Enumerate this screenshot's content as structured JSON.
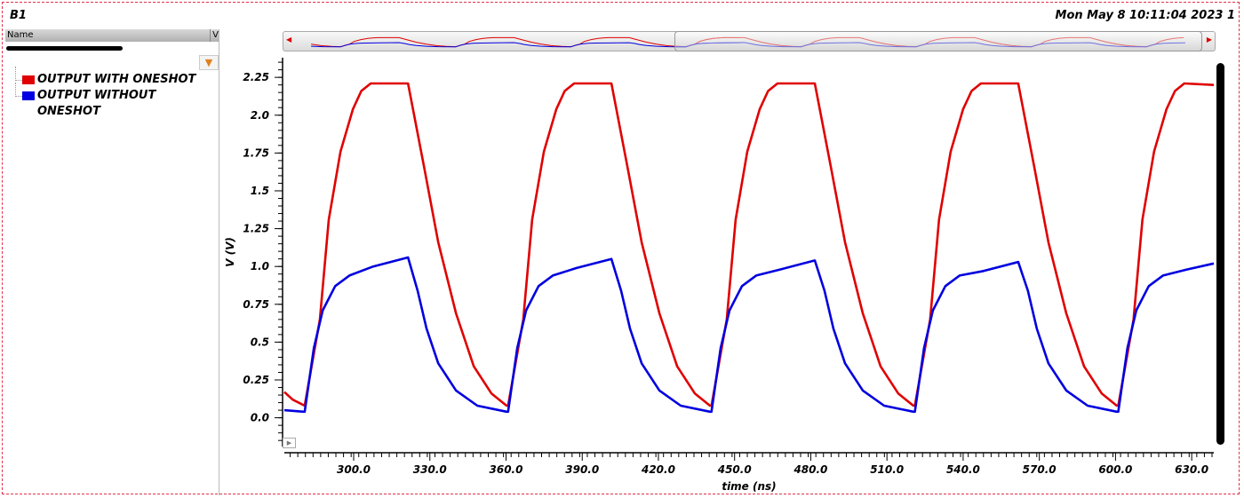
{
  "header": {
    "title": "B1",
    "date": "Mon May 8 10:11:04 2023  1"
  },
  "panel": {
    "name_col": "Name",
    "value_col": "V",
    "filter_icon": "filter-icon"
  },
  "chart_data": {
    "type": "line",
    "xlabel": "time (ns)",
    "ylabel": "V (V)",
    "xlim": [
      272.7,
      638.7
    ],
    "ylim": [
      -0.19,
      2.38
    ],
    "xticks": [
      300,
      330,
      360,
      390,
      420,
      450,
      480,
      510,
      540,
      570,
      600,
      630
    ],
    "xtick_labels": [
      "300.0",
      "330.0",
      "360.0",
      "390.0",
      "420.0",
      "450.0",
      "480.0",
      "510.0",
      "540.0",
      "570.0",
      "600.0",
      "630.0"
    ],
    "yticks": [
      0,
      0.25,
      0.5,
      0.75,
      1.0,
      1.25,
      1.5,
      1.75,
      2.0,
      2.25
    ],
    "ytick_labels": [
      "0.0",
      "0.25",
      "0.5",
      "0.75",
      "1.0",
      "1.25",
      "1.5",
      "1.75",
      "2.0",
      "2.25"
    ],
    "grid": false,
    "legend": "left-panel",
    "series": [
      {
        "name": "OUTPUT WITH ONESHOT",
        "color": "#e00000",
        "points": [
          [
            272.7,
            0.17
          ],
          [
            276,
            0.12
          ],
          [
            280.7,
            0.08
          ],
          [
            286.7,
            0.65
          ],
          [
            290.2,
            1.31
          ],
          [
            294.8,
            1.76
          ],
          [
            299.7,
            2.04
          ],
          [
            303,
            2.16
          ],
          [
            306.7,
            2.21
          ],
          [
            321.4,
            2.21
          ],
          [
            327.7,
            1.66
          ],
          [
            333.3,
            1.16
          ],
          [
            340.3,
            0.69
          ],
          [
            347.3,
            0.34
          ],
          [
            354.3,
            0.16
          ],
          [
            360.2,
            0.08
          ],
          [
            360.8,
            0.08
          ],
          [
            366.8,
            0.65
          ],
          [
            370.3,
            1.31
          ],
          [
            374.9,
            1.76
          ],
          [
            379.8,
            2.04
          ],
          [
            383.1,
            2.16
          ],
          [
            386.8,
            2.21
          ],
          [
            401.5,
            2.21
          ],
          [
            407.8,
            1.66
          ],
          [
            413.4,
            1.16
          ],
          [
            420.4,
            0.69
          ],
          [
            427.4,
            0.34
          ],
          [
            434.4,
            0.16
          ],
          [
            440.3,
            0.08
          ],
          [
            440.9,
            0.08
          ],
          [
            446.9,
            0.65
          ],
          [
            450.4,
            1.31
          ],
          [
            455,
            1.76
          ],
          [
            459.9,
            2.04
          ],
          [
            463.2,
            2.16
          ],
          [
            466.9,
            2.21
          ],
          [
            481.6,
            2.21
          ],
          [
            487.9,
            1.66
          ],
          [
            493.5,
            1.16
          ],
          [
            500.5,
            0.69
          ],
          [
            507.5,
            0.34
          ],
          [
            514.5,
            0.16
          ],
          [
            520.4,
            0.08
          ],
          [
            521,
            0.08
          ],
          [
            527,
            0.65
          ],
          [
            530.5,
            1.31
          ],
          [
            535.1,
            1.76
          ],
          [
            540,
            2.04
          ],
          [
            543.3,
            2.16
          ],
          [
            547,
            2.21
          ],
          [
            561.7,
            2.21
          ],
          [
            568,
            1.66
          ],
          [
            573.6,
            1.16
          ],
          [
            580.6,
            0.69
          ],
          [
            587.6,
            0.34
          ],
          [
            594.6,
            0.16
          ],
          [
            600.5,
            0.08
          ],
          [
            601.1,
            0.08
          ],
          [
            607.1,
            0.65
          ],
          [
            610.6,
            1.31
          ],
          [
            615.2,
            1.76
          ],
          [
            620.1,
            2.04
          ],
          [
            623.4,
            2.16
          ],
          [
            627.1,
            2.21
          ],
          [
            638.7,
            2.2
          ]
        ]
      },
      {
        "name": "OUTPUT WITHOUT ONESHOT",
        "color": "#0000e0",
        "points": [
          [
            272.7,
            0.05
          ],
          [
            280.3,
            0.04
          ],
          [
            280.7,
            0.04
          ],
          [
            284.3,
            0.46
          ],
          [
            287.8,
            0.71
          ],
          [
            292.7,
            0.87
          ],
          [
            298.3,
            0.94
          ],
          [
            307.7,
            1.0
          ],
          [
            321.4,
            1.06
          ],
          [
            325.2,
            0.84
          ],
          [
            328.7,
            0.59
          ],
          [
            333.3,
            0.36
          ],
          [
            340.3,
            0.18
          ],
          [
            348.7,
            0.08
          ],
          [
            360.2,
            0.04
          ],
          [
            360.8,
            0.04
          ],
          [
            364.4,
            0.46
          ],
          [
            367.9,
            0.71
          ],
          [
            372.8,
            0.87
          ],
          [
            378.4,
            0.94
          ],
          [
            387.8,
            0.99
          ],
          [
            401.5,
            1.05
          ],
          [
            405.3,
            0.84
          ],
          [
            408.8,
            0.59
          ],
          [
            413.4,
            0.36
          ],
          [
            420.4,
            0.18
          ],
          [
            428.8,
            0.08
          ],
          [
            440.3,
            0.04
          ],
          [
            440.9,
            0.04
          ],
          [
            444.5,
            0.46
          ],
          [
            448,
            0.71
          ],
          [
            452.9,
            0.87
          ],
          [
            458.5,
            0.94
          ],
          [
            467.9,
            0.98
          ],
          [
            481.6,
            1.04
          ],
          [
            485.4,
            0.84
          ],
          [
            488.9,
            0.59
          ],
          [
            493.5,
            0.36
          ],
          [
            500.5,
            0.18
          ],
          [
            508.9,
            0.08
          ],
          [
            520.4,
            0.04
          ],
          [
            521,
            0.04
          ],
          [
            524.6,
            0.46
          ],
          [
            528.1,
            0.71
          ],
          [
            533,
            0.87
          ],
          [
            538.6,
            0.94
          ],
          [
            548,
            0.97
          ],
          [
            561.7,
            1.03
          ],
          [
            565.5,
            0.84
          ],
          [
            569,
            0.59
          ],
          [
            573.6,
            0.36
          ],
          [
            580.6,
            0.18
          ],
          [
            589,
            0.08
          ],
          [
            600.5,
            0.04
          ],
          [
            601.1,
            0.04
          ],
          [
            604.7,
            0.46
          ],
          [
            608.2,
            0.71
          ],
          [
            613.1,
            0.87
          ],
          [
            618.7,
            0.94
          ],
          [
            628.1,
            0.98
          ],
          [
            638.7,
            1.02
          ]
        ]
      }
    ]
  }
}
